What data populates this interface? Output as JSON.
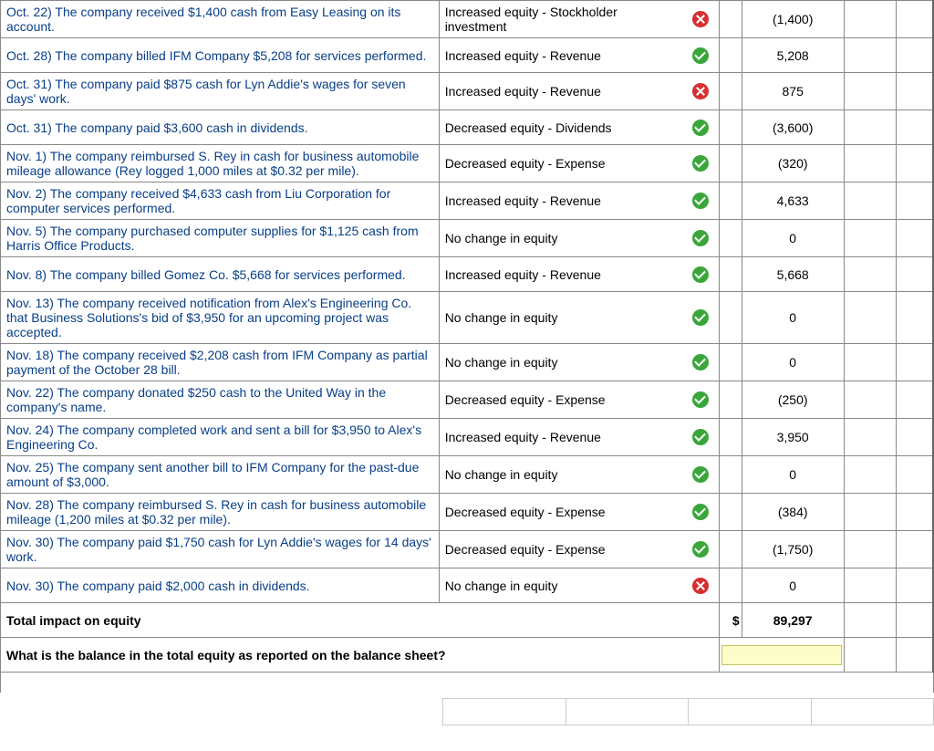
{
  "currency_symbol": "$",
  "rows": [
    {
      "desc": "Oct. 22)  The company received $1,400 cash from Easy Leasing on its account.",
      "effect": "Increased equity - Stockholder investment",
      "status": "cross",
      "amount": "(1,400)"
    },
    {
      "desc": "Oct. 28)  The company billed IFM Company $5,208 for services performed.",
      "effect": "Increased equity - Revenue",
      "status": "check",
      "amount": "5,208"
    },
    {
      "desc": "Oct. 31)  The company paid $875 cash for Lyn Addie's wages for seven days' work.",
      "effect": "Increased equity - Revenue",
      "status": "cross",
      "amount": "875"
    },
    {
      "desc": "Oct. 31)  The company paid $3,600 cash in dividends.",
      "effect": "Decreased equity - Dividends",
      "status": "check",
      "amount": "(3,600)"
    },
    {
      "desc": "Nov. 1)  The company reimbursed S. Rey in cash for business automobile mileage allowance (Rey logged 1,000 miles at $0.32 per mile).",
      "effect": "Decreased equity - Expense",
      "status": "check",
      "amount": "(320)"
    },
    {
      "desc": "Nov. 2)  The company received $4,633 cash from Liu Corporation for computer services performed.",
      "effect": "Increased equity - Revenue",
      "status": "check",
      "amount": "4,633"
    },
    {
      "desc": "Nov. 5)  The company purchased computer supplies for $1,125 cash from Harris Office Products.",
      "effect": "No change in equity",
      "status": "check",
      "amount": "0"
    },
    {
      "desc": "Nov. 8)  The company billed Gomez Co. $5,668 for services performed.",
      "effect": "Increased equity - Revenue",
      "status": "check",
      "amount": "5,668"
    },
    {
      "desc": "Nov. 13)  The company received notification from Alex's Engineering Co. that Business Solutions's bid of $3,950 for an upcoming project was accepted.",
      "effect": "No change in equity",
      "status": "check",
      "amount": "0"
    },
    {
      "desc": "Nov. 18)  The company received $2,208 cash from IFM Company as partial payment of the October 28 bill.",
      "effect": "No change in equity",
      "status": "check",
      "amount": "0"
    },
    {
      "desc": "Nov. 22)  The company donated $250 cash to the United Way in the company's name.",
      "effect": "Decreased equity - Expense",
      "status": "check",
      "amount": "(250)"
    },
    {
      "desc": "Nov. 24)  The company completed work and sent a bill for $3,950 to Alex's Engineering Co.",
      "effect": "Increased equity - Revenue",
      "status": "check",
      "amount": "3,950"
    },
    {
      "desc": "Nov. 25)  The company sent another bill to IFM Company for the past-due amount of $3,000.",
      "effect": "No change in equity",
      "status": "check",
      "amount": "0"
    },
    {
      "desc": "Nov. 28)  The company reimbursed S. Rey in cash for business automobile mileage (1,200 miles at $0.32 per mile).",
      "effect": "Decreased equity - Expense",
      "status": "check",
      "amount": "(384)"
    },
    {
      "desc": "Nov. 30)  The company paid $1,750 cash for Lyn Addie's wages for 14 days' work.",
      "effect": "Decreased equity - Expense",
      "status": "check",
      "amount": "(1,750)"
    },
    {
      "desc": "Nov. 30)  The company paid $2,000 cash in dividends.",
      "effect": "No change in equity",
      "status": "cross",
      "amount": "0"
    }
  ],
  "total": {
    "label": "Total impact on equity",
    "amount": "89,297"
  },
  "question": "What is the balance in the total equity as reported on the balance sheet?",
  "colors": {
    "desc_text": "#083f88",
    "border": "#888888",
    "check_bg": "#3aa63a",
    "cross_bg": "#d63030",
    "input_bg": "#fdfdc9"
  }
}
